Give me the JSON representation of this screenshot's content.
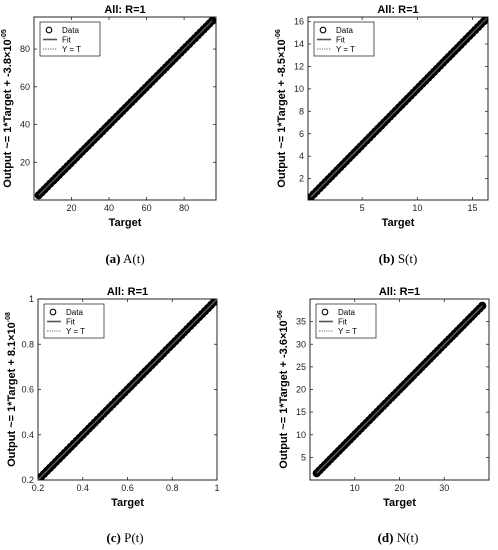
{
  "chart_data": [
    {
      "type": "scatter",
      "title": "All: R=1",
      "xlabel": "Target",
      "ylabel": "Output ~= 1*Target + -3.8×10",
      "ylabel_exp": "-05",
      "xlim": [
        0,
        97
      ],
      "ylim": [
        0,
        97
      ],
      "xticks": [
        20,
        40,
        60,
        80
      ],
      "yticks": [
        20,
        40,
        60,
        80
      ],
      "points": [
        [
          2.5,
          2.5
        ],
        [
          95,
          95
        ]
      ],
      "legend": [
        "Data",
        "Fit",
        "Y = T"
      ],
      "legend_position": "top-left",
      "caption_label": "(a)",
      "caption_text": " A(t)"
    },
    {
      "type": "scatter",
      "title": "All: R=1",
      "xlabel": "Target",
      "ylabel": "Output ~= 1*Target + -8.5×10",
      "ylabel_exp": "-06",
      "xlim": [
        0.1,
        16.4
      ],
      "ylim": [
        0.1,
        16.4
      ],
      "xticks": [
        5,
        10,
        15
      ],
      "yticks": [
        2,
        4,
        6,
        8,
        10,
        12,
        14,
        16
      ],
      "points": [
        [
          0.35,
          0.35
        ],
        [
          16.3,
          16.3
        ]
      ],
      "legend": [
        "Data",
        "Fit",
        "Y = T"
      ],
      "legend_position": "top-left",
      "caption_label": "(b)",
      "caption_text": " S(t)"
    },
    {
      "type": "scatter",
      "title": "All: R=1",
      "xlabel": "Target",
      "ylabel": "Output ~= 1*Target + 8.1×10",
      "ylabel_exp": "-08",
      "xlim": [
        0.2,
        1.0
      ],
      "ylim": [
        0.2,
        1.0
      ],
      "xticks": [
        0.2,
        0.4,
        0.6,
        0.8,
        1
      ],
      "yticks": [
        0.2,
        0.4,
        0.6,
        0.8,
        1
      ],
      "points": [
        [
          0.2,
          0.2
        ],
        [
          1.0,
          1.0
        ]
      ],
      "legend": [
        "Data",
        "Fit",
        "Y = T"
      ],
      "legend_position": "top-left",
      "caption_label": "(c)",
      "caption_text": " P(t)"
    },
    {
      "type": "scatter",
      "title": "All: R=1",
      "xlabel": "Target",
      "ylabel": "Output ~= 1*Target + -3.6×10",
      "ylabel_exp": "-06",
      "xlim": [
        0,
        40
      ],
      "ylim": [
        0,
        40
      ],
      "xticks": [
        10,
        20,
        30
      ],
      "yticks": [
        5,
        10,
        15,
        20,
        25,
        30,
        35
      ],
      "points": [
        [
          1.5,
          1.5
        ],
        [
          38.5,
          38.5
        ]
      ],
      "legend": [
        "Data",
        "Fit",
        "Y = T"
      ],
      "legend_position": "top-left",
      "caption_label": "(d)",
      "caption_text": " N(t)"
    }
  ]
}
